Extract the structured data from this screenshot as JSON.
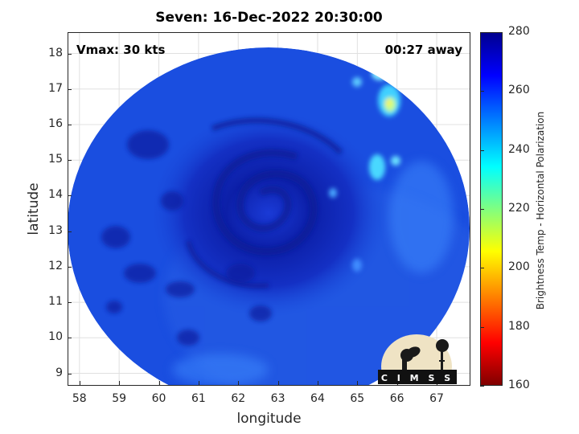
{
  "title": "Seven: 16-Dec-2022 20:30:00",
  "annotations": {
    "vmax": "Vmax: 30 kts",
    "time_away": "00:27 away"
  },
  "axes": {
    "xlabel": "longitude",
    "ylabel": "latitude",
    "xlim": [
      57.7,
      67.85
    ],
    "ylim": [
      8.65,
      18.6
    ],
    "xticks": [
      "58",
      "59",
      "60",
      "61",
      "62",
      "63",
      "64",
      "65",
      "66",
      "67"
    ],
    "yticks": [
      "18",
      "17",
      "16",
      "15",
      "14",
      "13",
      "12",
      "11",
      "10",
      "9"
    ],
    "grid": true
  },
  "colorbar": {
    "label": "Brightness Temp - Horizontal Polarization",
    "ticks": [
      "280",
      "260",
      "240",
      "220",
      "200",
      "180",
      "160"
    ],
    "range": [
      160,
      280
    ],
    "colormap": "jet"
  },
  "logo": {
    "text": "CIMSS"
  },
  "map_data": {
    "type": "microwave brightness temperature swath",
    "swath_center": [
      62.45,
      13.75
    ],
    "storm_center": [
      62.6,
      14.2
    ],
    "background_temp_K": 258,
    "colors": {
      "background": "#1a4ee0",
      "cold": "#0a1a9e",
      "warm": "#3fd0ff",
      "hot": "#ffee55"
    }
  }
}
